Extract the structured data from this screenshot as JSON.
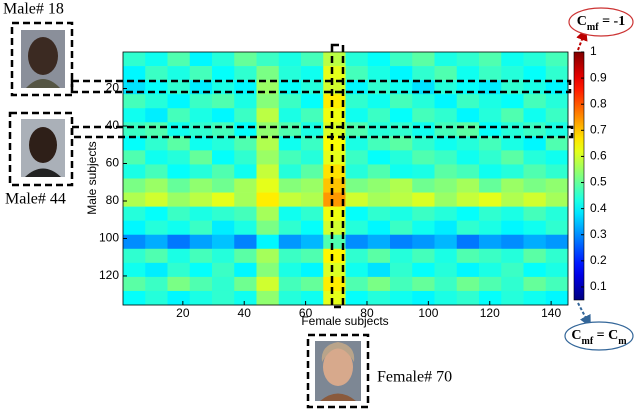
{
  "chart_data": {
    "type": "heatmap",
    "xlabel": "Female subjects",
    "ylabel": "Male subjects",
    "xlim": [
      0.5,
      145.5
    ],
    "ylim": [
      0.5,
      135.5
    ],
    "xticks": [
      20,
      40,
      60,
      80,
      100,
      120,
      140
    ],
    "yticks": [
      20,
      40,
      60,
      80,
      100,
      120
    ],
    "clim": [
      0.05,
      1
    ],
    "cticks": [
      0.1,
      0.2,
      0.3,
      0.4,
      0.5,
      0.6,
      0.7,
      0.8,
      0.9,
      1
    ],
    "colormap": "jet",
    "values": [
      [
        0.45,
        0.42,
        0.48,
        0.4,
        0.44,
        0.5,
        0.46,
        0.43,
        0.47,
        0.58,
        0.44,
        0.41,
        0.46,
        0.49,
        0.43,
        0.45,
        0.48,
        0.42,
        0.44,
        0.47
      ],
      [
        0.4,
        0.46,
        0.43,
        0.47,
        0.41,
        0.45,
        0.52,
        0.44,
        0.42,
        0.62,
        0.47,
        0.43,
        0.4,
        0.45,
        0.48,
        0.42,
        0.46,
        0.44,
        0.41,
        0.45
      ],
      [
        0.38,
        0.41,
        0.45,
        0.39,
        0.43,
        0.4,
        0.55,
        0.41,
        0.44,
        0.6,
        0.4,
        0.45,
        0.42,
        0.38,
        0.44,
        0.41,
        0.39,
        0.45,
        0.43,
        0.4
      ],
      [
        0.47,
        0.44,
        0.4,
        0.46,
        0.48,
        0.43,
        0.53,
        0.46,
        0.41,
        0.66,
        0.45,
        0.42,
        0.47,
        0.44,
        0.4,
        0.46,
        0.43,
        0.41,
        0.47,
        0.44
      ],
      [
        0.42,
        0.39,
        0.47,
        0.43,
        0.4,
        0.46,
        0.58,
        0.43,
        0.47,
        0.63,
        0.42,
        0.46,
        0.41,
        0.47,
        0.45,
        0.4,
        0.44,
        0.48,
        0.42,
        0.46
      ],
      [
        0.46,
        0.48,
        0.42,
        0.45,
        0.47,
        0.41,
        0.54,
        0.48,
        0.43,
        0.61,
        0.48,
        0.44,
        0.45,
        0.42,
        0.47,
        0.49,
        0.41,
        0.44,
        0.46,
        0.43
      ],
      [
        0.41,
        0.45,
        0.49,
        0.42,
        0.44,
        0.48,
        0.57,
        0.42,
        0.46,
        0.64,
        0.43,
        0.47,
        0.49,
        0.45,
        0.42,
        0.44,
        0.47,
        0.43,
        0.4,
        0.48
      ],
      [
        0.48,
        0.42,
        0.44,
        0.5,
        0.41,
        0.45,
        0.55,
        0.47,
        0.44,
        0.62,
        0.46,
        0.41,
        0.44,
        0.48,
        0.46,
        0.42,
        0.45,
        0.49,
        0.44,
        0.42
      ],
      [
        0.43,
        0.47,
        0.41,
        0.44,
        0.48,
        0.42,
        0.59,
        0.44,
        0.49,
        0.67,
        0.44,
        0.48,
        0.42,
        0.43,
        0.49,
        0.47,
        0.42,
        0.44,
        0.48,
        0.45
      ],
      [
        0.52,
        0.55,
        0.5,
        0.54,
        0.51,
        0.56,
        0.62,
        0.53,
        0.55,
        0.7,
        0.52,
        0.54,
        0.57,
        0.51,
        0.53,
        0.56,
        0.5,
        0.55,
        0.52,
        0.54
      ],
      [
        0.57,
        0.6,
        0.55,
        0.58,
        0.62,
        0.56,
        0.66,
        0.59,
        0.57,
        0.74,
        0.6,
        0.56,
        0.58,
        0.61,
        0.55,
        0.59,
        0.62,
        0.57,
        0.6,
        0.56
      ],
      [
        0.44,
        0.41,
        0.46,
        0.43,
        0.45,
        0.47,
        0.56,
        0.42,
        0.45,
        0.63,
        0.41,
        0.45,
        0.43,
        0.46,
        0.44,
        0.41,
        0.45,
        0.43,
        0.47,
        0.44
      ],
      [
        0.4,
        0.44,
        0.42,
        0.46,
        0.39,
        0.43,
        0.52,
        0.45,
        0.41,
        0.6,
        0.44,
        0.4,
        0.46,
        0.42,
        0.39,
        0.45,
        0.43,
        0.4,
        0.42,
        0.45
      ],
      [
        0.3,
        0.33,
        0.28,
        0.32,
        0.35,
        0.29,
        0.4,
        0.31,
        0.34,
        0.48,
        0.3,
        0.33,
        0.29,
        0.31,
        0.34,
        0.28,
        0.32,
        0.3,
        0.33,
        0.31
      ],
      [
        0.45,
        0.48,
        0.43,
        0.47,
        0.44,
        0.49,
        0.56,
        0.46,
        0.48,
        0.65,
        0.45,
        0.49,
        0.44,
        0.47,
        0.43,
        0.48,
        0.46,
        0.44,
        0.49,
        0.45
      ],
      [
        0.42,
        0.39,
        0.45,
        0.41,
        0.46,
        0.4,
        0.53,
        0.43,
        0.4,
        0.61,
        0.42,
        0.38,
        0.45,
        0.41,
        0.44,
        0.4,
        0.43,
        0.46,
        0.41,
        0.43
      ],
      [
        0.49,
        0.46,
        0.52,
        0.48,
        0.45,
        0.51,
        0.6,
        0.47,
        0.5,
        0.66,
        0.48,
        0.52,
        0.47,
        0.5,
        0.46,
        0.51,
        0.48,
        0.45,
        0.5,
        0.47
      ],
      [
        0.41,
        0.44,
        0.4,
        0.43,
        0.45,
        0.42,
        0.54,
        0.44,
        0.42,
        0.62,
        0.41,
        0.44,
        0.42,
        0.4,
        0.43,
        0.45,
        0.41,
        0.44,
        0.42,
        0.4
      ]
    ],
    "annotations": {
      "male_a": "Male# 18",
      "male_b": "Male# 44",
      "female": "Female# 70",
      "top_label": [
        {
          "text": "C"
        },
        {
          "text": "mf",
          "sub": true
        },
        {
          "text": " = -1"
        }
      ],
      "bottom_label": [
        {
          "text": "C"
        },
        {
          "text": "mf",
          "sub": true
        },
        {
          "text": " = C"
        },
        {
          "text": "m",
          "sub": true
        }
      ]
    }
  }
}
